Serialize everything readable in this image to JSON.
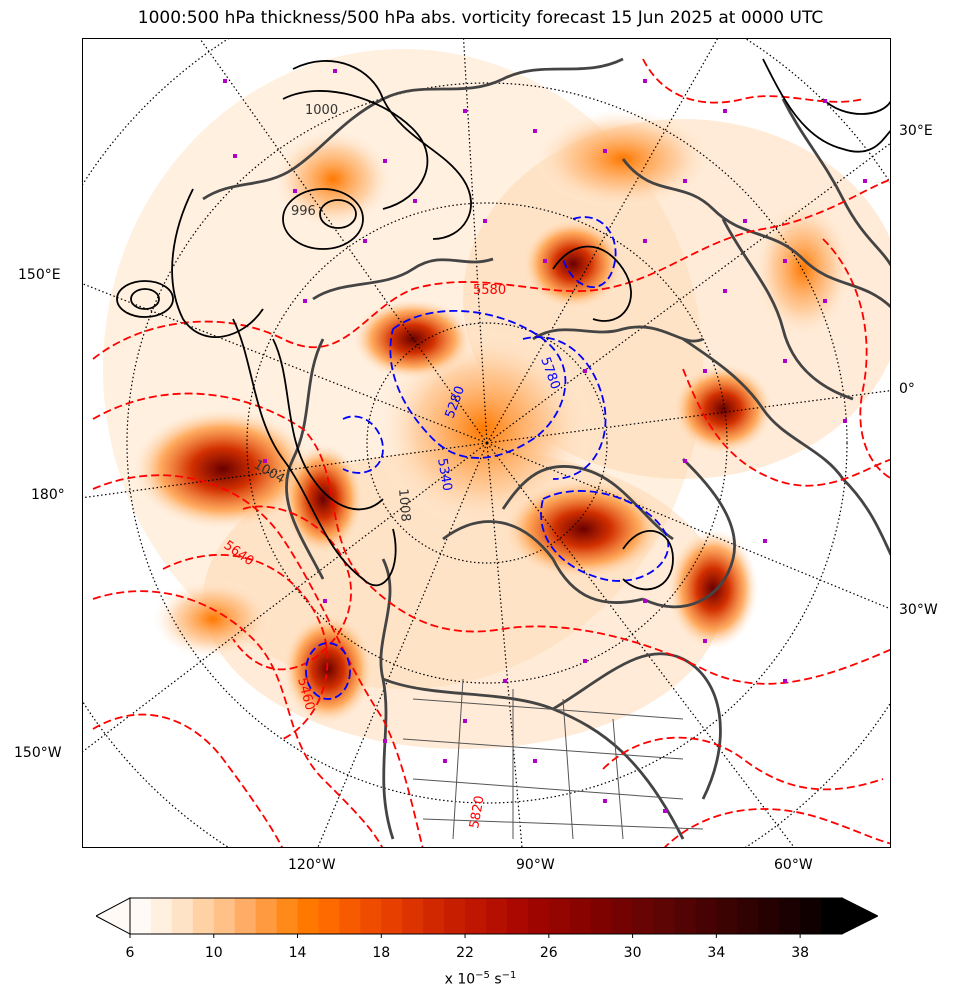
{
  "title": "1000:500 hPa thickness/500 hPa abs. vorticity forecast 15 Jun 2025 at 0000 UTC",
  "map": {
    "projection": "north polar stereographic",
    "fill_field": "500 hPa absolute vorticity",
    "contours": {
      "thickness_colors": [
        "#ff0000",
        "#0000ff"
      ],
      "pressure_color": "#000000",
      "thickness_labels": [
        "5280",
        "5340",
        "5580",
        "5640",
        "5780",
        "5820",
        "5460"
      ],
      "pressure_labels": [
        "1000",
        "996",
        "1004",
        "1008"
      ]
    },
    "longitude_labels": {
      "left": [
        "150°E",
        "180°",
        "150°W"
      ],
      "right": [
        "30°E",
        "0°",
        "30°W"
      ],
      "bottom": [
        "120°W",
        "90°W",
        "60°W"
      ]
    }
  },
  "colorbar": {
    "min": 6,
    "max": 40,
    "step": 1,
    "ticks": [
      "6",
      "10",
      "14",
      "18",
      "22",
      "26",
      "30",
      "34",
      "38"
    ],
    "extend": "both",
    "colors": [
      "#fffaf5",
      "#fff0e0",
      "#ffe3c6",
      "#ffd2a6",
      "#ffc188",
      "#ffad66",
      "#ff9a40",
      "#ff8a1a",
      "#ff7800",
      "#ff6a00",
      "#f85a00",
      "#f04c00",
      "#e63f00",
      "#dc3300",
      "#d22800",
      "#c81e00",
      "#be1600",
      "#b40f00",
      "#aa0800",
      "#9f0500",
      "#940400",
      "#890300",
      "#7e0300",
      "#730303",
      "#680404",
      "#5d0404",
      "#520404",
      "#470303",
      "#3c0303",
      "#310202",
      "#260101",
      "#1b0101",
      "#100000",
      "#000000"
    ],
    "label": "x 10",
    "label_exponent": "−5",
    "label_unit": "s",
    "label_unit_exponent": "−1"
  }
}
